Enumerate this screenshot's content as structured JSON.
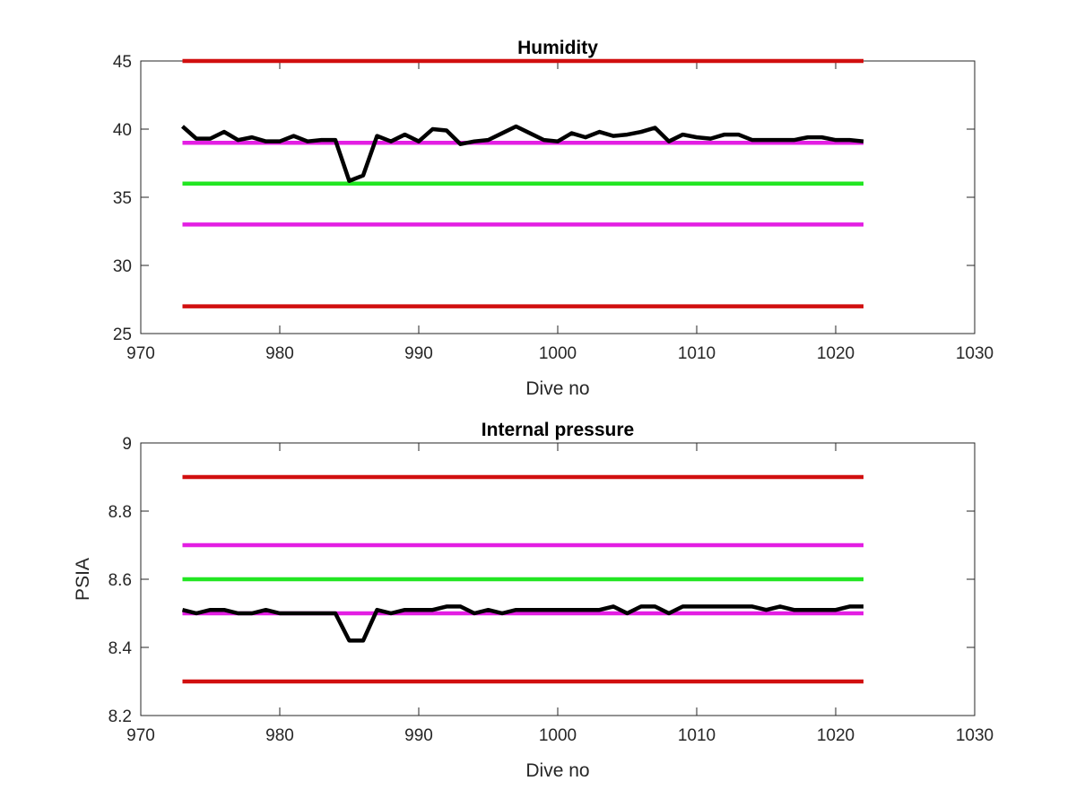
{
  "chart_data": [
    {
      "type": "line",
      "title": "Humidity",
      "xlabel": "Dive no",
      "ylabel": "",
      "xlim": [
        970,
        1030
      ],
      "ylim": [
        25,
        45
      ],
      "xticks": [
        970,
        980,
        990,
        1000,
        1010,
        1020,
        1030
      ],
      "yticks": [
        25,
        30,
        35,
        40,
        45
      ],
      "grid": false,
      "reference_lines": [
        {
          "y": 45,
          "x": [
            973,
            1022
          ],
          "color": "#d10f0f"
        },
        {
          "y": 39,
          "x": [
            973,
            1022
          ],
          "color": "#e31ee3"
        },
        {
          "y": 36,
          "x": [
            973,
            1022
          ],
          "color": "#22e622"
        },
        {
          "y": 33,
          "x": [
            973,
            1022
          ],
          "color": "#e31ee3"
        },
        {
          "y": 27,
          "x": [
            973,
            1022
          ],
          "color": "#d10f0f"
        }
      ],
      "series": [
        {
          "color": "#000000",
          "x": [
            973,
            974,
            975,
            976,
            977,
            978,
            979,
            980,
            981,
            982,
            983,
            984,
            985,
            986,
            987,
            988,
            989,
            990,
            991,
            992,
            993,
            994,
            995,
            996,
            997,
            998,
            999,
            1000,
            1001,
            1002,
            1003,
            1004,
            1005,
            1006,
            1007,
            1008,
            1009,
            1010,
            1011,
            1012,
            1013,
            1014,
            1015,
            1016,
            1017,
            1018,
            1019,
            1020,
            1021,
            1022
          ],
          "y": [
            40.2,
            39.3,
            39.3,
            39.8,
            39.2,
            39.4,
            39.1,
            39.1,
            39.5,
            39.1,
            39.2,
            39.2,
            36.2,
            36.6,
            39.5,
            39.1,
            39.6,
            39.1,
            40.0,
            39.9,
            38.9,
            39.1,
            39.2,
            39.7,
            40.2,
            39.7,
            39.2,
            39.1,
            39.7,
            39.4,
            39.8,
            39.5,
            39.6,
            39.8,
            40.1,
            39.1,
            39.6,
            39.4,
            39.3,
            39.6,
            39.6,
            39.2,
            39.2,
            39.2,
            39.2,
            39.4,
            39.4,
            39.2,
            39.2,
            39.1
          ]
        }
      ]
    },
    {
      "type": "line",
      "title": "Internal pressure",
      "xlabel": "Dive no",
      "ylabel": "PSIA",
      "xlim": [
        970,
        1030
      ],
      "ylim": [
        8.2,
        9
      ],
      "xticks": [
        970,
        980,
        990,
        1000,
        1010,
        1020,
        1030
      ],
      "yticks": [
        8.2,
        8.4,
        8.6,
        8.8,
        9
      ],
      "grid": false,
      "reference_lines": [
        {
          "y": 8.9,
          "x": [
            973,
            1022
          ],
          "color": "#d10f0f"
        },
        {
          "y": 8.7,
          "x": [
            973,
            1022
          ],
          "color": "#e31ee3"
        },
        {
          "y": 8.6,
          "x": [
            973,
            1022
          ],
          "color": "#22e622"
        },
        {
          "y": 8.5,
          "x": [
            973,
            1022
          ],
          "color": "#e31ee3"
        },
        {
          "y": 8.3,
          "x": [
            973,
            1022
          ],
          "color": "#d10f0f"
        }
      ],
      "series": [
        {
          "color": "#000000",
          "x": [
            973,
            974,
            975,
            976,
            977,
            978,
            979,
            980,
            981,
            982,
            983,
            984,
            985,
            986,
            987,
            988,
            989,
            990,
            991,
            992,
            993,
            994,
            995,
            996,
            997,
            998,
            999,
            1000,
            1001,
            1002,
            1003,
            1004,
            1005,
            1006,
            1007,
            1008,
            1009,
            1010,
            1011,
            1012,
            1013,
            1014,
            1015,
            1016,
            1017,
            1018,
            1019,
            1020,
            1021,
            1022
          ],
          "y": [
            8.51,
            8.5,
            8.51,
            8.51,
            8.5,
            8.5,
            8.51,
            8.5,
            8.5,
            8.5,
            8.5,
            8.5,
            8.42,
            8.42,
            8.51,
            8.5,
            8.51,
            8.51,
            8.51,
            8.52,
            8.52,
            8.5,
            8.51,
            8.5,
            8.51,
            8.51,
            8.51,
            8.51,
            8.51,
            8.51,
            8.51,
            8.52,
            8.5,
            8.52,
            8.52,
            8.5,
            8.52,
            8.52,
            8.52,
            8.52,
            8.52,
            8.52,
            8.51,
            8.52,
            8.51,
            8.51,
            8.51,
            8.51,
            8.52,
            8.52
          ]
        }
      ]
    }
  ]
}
